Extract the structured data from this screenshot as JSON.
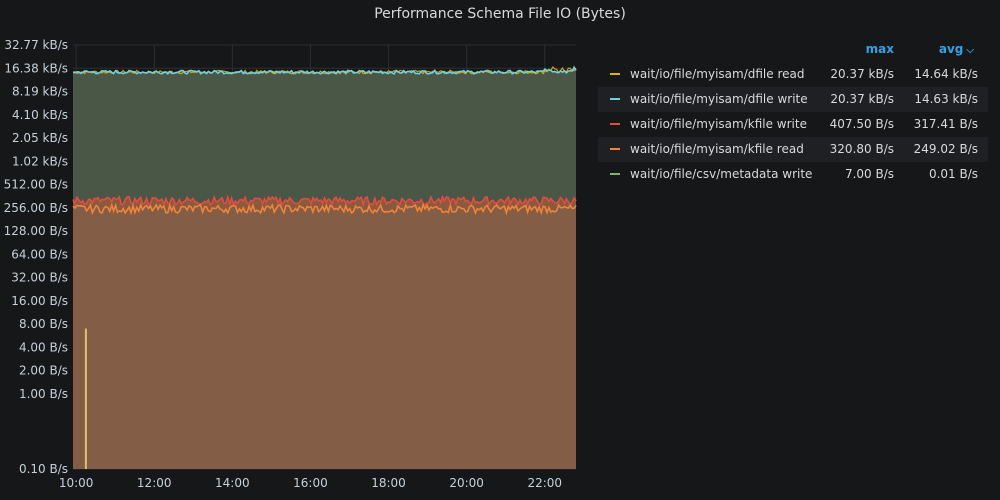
{
  "panel": {
    "title": "Performance Schema File IO (Bytes)"
  },
  "legend": {
    "max_label": "max",
    "avg_label": "avg",
    "sort_icon": "chevron-down-icon",
    "rows": [
      {
        "name": "wait/io/file/myisam/dfile read",
        "color": "#e0b400",
        "max": "20.37 kB/s",
        "avg": "14.64 kB/s"
      },
      {
        "name": "wait/io/file/myisam/dfile write",
        "color": "#6ed0e0",
        "max": "20.37 kB/s",
        "avg": "14.63 kB/s"
      },
      {
        "name": "wait/io/file/myisam/kfile write",
        "color": "#e24d42",
        "max": "407.50 B/s",
        "avg": "317.41 B/s"
      },
      {
        "name": "wait/io/file/myisam/kfile read",
        "color": "#ef843c",
        "max": "320.80 B/s",
        "avg": "249.02 B/s"
      },
      {
        "name": "wait/io/file/csv/metadata write",
        "color": "#7eb26d",
        "max": "7.00 B/s",
        "avg": "0.01 B/s"
      }
    ]
  },
  "chart_data": {
    "type": "area",
    "y_scale": "log2",
    "ylim_bytes_per_s": [
      0.1,
      32768
    ],
    "y_tick_values": [
      32768,
      16384,
      8192,
      4096,
      2048,
      1024,
      512,
      256,
      128,
      64,
      32,
      16,
      8,
      4,
      2,
      1,
      0.1
    ],
    "y_ticks": [
      "32.77 kB/s",
      "16.38 kB/s",
      "8.19 kB/s",
      "4.10 kB/s",
      "2.05 kB/s",
      "1.02 kB/s",
      "512.00 B/s",
      "256.00 B/s",
      "128.00 B/s",
      "64.00 B/s",
      "32.00 B/s",
      "16.00 B/s",
      "8.00 B/s",
      "4.00 B/s",
      "2.00 B/s",
      "1.00 B/s",
      "0.10 B/s"
    ],
    "x_ticks": [
      "10:00",
      "12:00",
      "14:00",
      "16:00",
      "18:00",
      "20:00",
      "22:00"
    ],
    "x_tick_hours": [
      10,
      12,
      14,
      16,
      18,
      20,
      22
    ],
    "x_range_hours": [
      9.92,
      22.8
    ],
    "grid": true,
    "legend_placement": "right",
    "series": [
      {
        "name": "wait/io/file/myisam/dfile read",
        "color": "#e0b400",
        "level_bytes_per_s": 14640,
        "noise": 0.05,
        "fill": false
      },
      {
        "name": "wait/io/file/myisam/dfile write",
        "color": "#6ed0e0",
        "level_bytes_per_s": 14630,
        "noise": 0.05,
        "fill": true
      },
      {
        "name": "wait/io/file/myisam/kfile write",
        "color": "#e24d42",
        "level_bytes_per_s": 317,
        "noise": 0.12,
        "fill": true
      },
      {
        "name": "wait/io/file/myisam/kfile read",
        "color": "#ef843c",
        "level_bytes_per_s": 249,
        "noise": 0.12,
        "fill": true
      },
      {
        "name": "wait/io/file/csv/metadata write",
        "color": "#7eb26d",
        "spike_time_hour": 10.25,
        "spike_bytes_per_s": 7,
        "fill": false
      }
    ]
  }
}
